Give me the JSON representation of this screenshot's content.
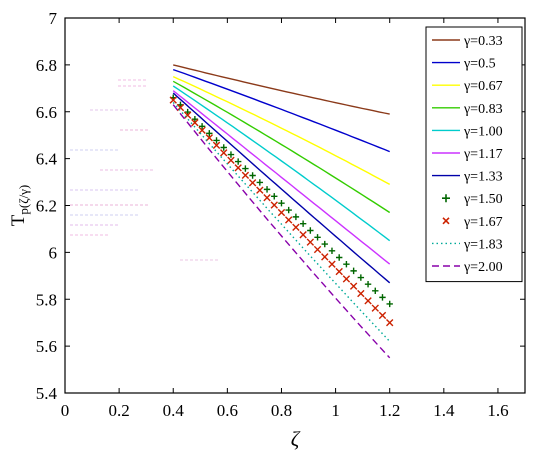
{
  "chart_data": {
    "type": "line",
    "title": "",
    "xlabel": "ζ",
    "ylabel_main": "T",
    "ylabel_sub": "p(ζ/γ)",
    "xlim": [
      0,
      1.7
    ],
    "ylim": [
      5.4,
      7.0
    ],
    "xticks": [
      "0",
      "0.2",
      "0.4",
      "0.6",
      "0.8",
      "1",
      "1.2",
      "1.4",
      "1.6"
    ],
    "xtick_values": [
      0,
      0.2,
      0.4,
      0.6,
      0.8,
      1.0,
      1.2,
      1.4,
      1.6
    ],
    "yticks": [
      "5.4",
      "5.6",
      "5.8",
      "6",
      "6.2",
      "6.4",
      "6.6",
      "6.8",
      "7"
    ],
    "ytick_values": [
      5.4,
      5.6,
      5.8,
      6.0,
      6.2,
      6.4,
      6.6,
      6.8,
      7.0
    ],
    "grid": false,
    "legend_position": "top-right",
    "series": [
      {
        "name": "γ=0.33",
        "color": "#8B3A1A",
        "style": "solid",
        "x": [
          0.4,
          0.8,
          1.2
        ],
        "y": [
          6.8,
          6.69,
          6.59
        ]
      },
      {
        "name": "γ=0.5",
        "color": "#0000CC",
        "style": "solid",
        "x": [
          0.4,
          0.8,
          1.2
        ],
        "y": [
          6.78,
          6.61,
          6.43
        ]
      },
      {
        "name": "γ=0.67",
        "color": "#FFFF00",
        "style": "solid",
        "x": [
          0.4,
          0.8,
          1.2
        ],
        "y": [
          6.75,
          6.53,
          6.29
        ]
      },
      {
        "name": "γ=0.83",
        "color": "#33CC00",
        "style": "solid",
        "x": [
          0.4,
          0.8,
          1.2
        ],
        "y": [
          6.73,
          6.46,
          6.17
        ]
      },
      {
        "name": "γ=1.00",
        "color": "#00CCCC",
        "style": "solid",
        "x": [
          0.4,
          0.8,
          1.2
        ],
        "y": [
          6.71,
          6.39,
          6.05
        ]
      },
      {
        "name": "γ=1.17",
        "color": "#CC33FF",
        "style": "solid",
        "x": [
          0.4,
          0.8,
          1.2
        ],
        "y": [
          6.69,
          6.32,
          5.95
        ]
      },
      {
        "name": "γ=1.33",
        "color": "#0000AA",
        "style": "solid",
        "x": [
          0.4,
          0.8,
          1.2
        ],
        "y": [
          6.68,
          6.27,
          5.87
        ]
      },
      {
        "name": "γ=1.50",
        "color": "#006600",
        "style": "plus",
        "x": [
          0.4,
          0.8,
          1.2
        ],
        "y": [
          6.66,
          6.21,
          5.78
        ]
      },
      {
        "name": "γ=1.67",
        "color": "#CC2200",
        "style": "cross",
        "x": [
          0.4,
          0.8,
          1.2
        ],
        "y": [
          6.65,
          6.17,
          5.7
        ]
      },
      {
        "name": "γ=1.83",
        "color": "#00AA99",
        "style": "dotted",
        "x": [
          0.4,
          0.8,
          1.2
        ],
        "y": [
          6.64,
          6.12,
          5.62
        ]
      },
      {
        "name": "γ=2.00",
        "color": "#8800AA",
        "style": "dashed",
        "x": [
          0.4,
          0.8,
          1.2
        ],
        "y": [
          6.63,
          6.07,
          5.55
        ]
      }
    ]
  }
}
